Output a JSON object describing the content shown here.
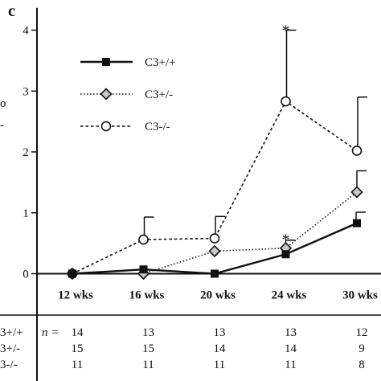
{
  "panel_marks": {
    "top_left": "c",
    "y_partial_1": "o",
    "y_partial_2": "-"
  },
  "chart_data": {
    "type": "line",
    "categories": [
      "12 wks",
      "16 wks",
      "20 wks",
      "24 wks",
      "30 wks"
    ],
    "ylim": [
      0,
      4.3
    ],
    "yticks": [
      0,
      1,
      2,
      3,
      4
    ],
    "grid": false,
    "legend_position": "top-left",
    "series": [
      {
        "name": "C3+/+",
        "style": "solid",
        "marker": "square",
        "color": "#111111",
        "values": [
          0.0,
          0.07,
          0.0,
          0.32,
          0.83
        ],
        "error_up": [
          null,
          null,
          null,
          null,
          0.18
        ]
      },
      {
        "name": "C3+/-",
        "style": "dotted",
        "marker": "diamond",
        "color": "#111111",
        "values": [
          0.0,
          0.0,
          0.37,
          0.42,
          1.34
        ],
        "error_up": [
          null,
          null,
          null,
          0.13,
          0.35
        ]
      },
      {
        "name": "C3-/-",
        "style": "dashed",
        "marker": "circle",
        "color": "#111111",
        "values": [
          0.0,
          0.56,
          0.58,
          2.83,
          2.02
        ],
        "error_up": [
          null,
          0.37,
          0.36,
          1.17,
          0.88
        ]
      }
    ],
    "annotations": [
      {
        "text": "*",
        "category": "24 wks",
        "value": 4.05
      },
      {
        "text": "*",
        "category": "24 wks",
        "value": 0.62
      }
    ]
  },
  "n_table": {
    "n_label": "n =",
    "rows": [
      {
        "label": "3+/+",
        "values": [
          "14",
          "13",
          "13",
          "13",
          "12"
        ]
      },
      {
        "label": "3+/-",
        "values": [
          "15",
          "15",
          "14",
          "14",
          "9"
        ]
      },
      {
        "label": "3-/-",
        "values": [
          "11",
          "11",
          "11",
          "11",
          "8"
        ]
      }
    ]
  }
}
